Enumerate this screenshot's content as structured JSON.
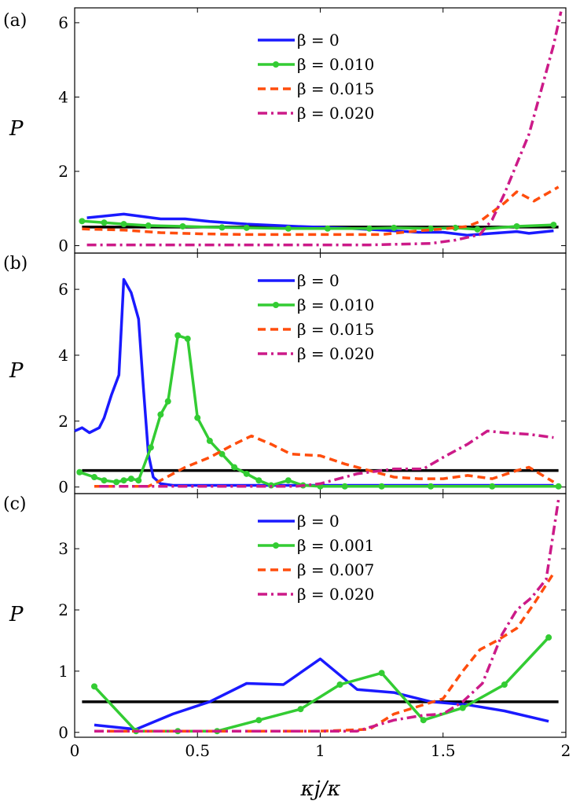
{
  "figure": {
    "xlabel": "κj/κ"
  },
  "chart_data": [
    {
      "type": "line",
      "panel_label": "(a)",
      "ylabel": "P",
      "xlim": [
        0,
        2
      ],
      "ylim": [
        -0.2,
        6.4
      ],
      "xticks": [
        0,
        0.5,
        1,
        1.5,
        2
      ],
      "xtick_labels": [],
      "yticks": [
        0,
        2,
        4,
        6
      ],
      "ytick_labels": [
        "0",
        "2",
        "4",
        "6"
      ],
      "legend_position": "top-center",
      "reference_line": {
        "name": "P = 0.5 reference",
        "y": 0.5,
        "color": "#000000"
      },
      "series": [
        {
          "name": "β = 0",
          "legend": "β = 0",
          "color": "#1a1aff",
          "style": "solid",
          "markers": false,
          "x": [
            0.05,
            0.2,
            0.35,
            0.45,
            0.55,
            0.7,
            0.9,
            1.1,
            1.25,
            1.4,
            1.5,
            1.6,
            1.7,
            1.8,
            1.85,
            1.95
          ],
          "y": [
            0.75,
            0.85,
            0.72,
            0.72,
            0.65,
            0.58,
            0.52,
            0.47,
            0.42,
            0.36,
            0.36,
            0.28,
            0.33,
            0.38,
            0.33,
            0.4
          ]
        },
        {
          "name": "β = 0.010",
          "legend": "β = 0.010",
          "color": "#33cc33",
          "style": "solid",
          "markers": true,
          "x": [
            0.03,
            0.12,
            0.2,
            0.3,
            0.44,
            0.6,
            0.7,
            0.87,
            1.03,
            1.2,
            1.3,
            1.45,
            1.55,
            1.64,
            1.8,
            1.95
          ],
          "y": [
            0.66,
            0.62,
            0.58,
            0.54,
            0.52,
            0.49,
            0.48,
            0.46,
            0.46,
            0.46,
            0.48,
            0.46,
            0.48,
            0.44,
            0.52,
            0.56
          ]
        },
        {
          "name": "β = 0.015",
          "legend": "β = 0.015",
          "color": "#ff4d0d",
          "style": "dashed",
          "markers": false,
          "x": [
            0.03,
            0.2,
            0.35,
            0.5,
            0.7,
            0.9,
            1.1,
            1.25,
            1.4,
            1.5,
            1.6,
            1.65,
            1.75,
            1.8,
            1.87,
            1.97
          ],
          "y": [
            0.45,
            0.42,
            0.35,
            0.32,
            0.3,
            0.3,
            0.3,
            0.3,
            0.4,
            0.45,
            0.52,
            0.65,
            1.15,
            1.45,
            1.2,
            1.58
          ]
        },
        {
          "name": "β = 0.020",
          "legend": "β = 0.020",
          "color": "#cc1a88",
          "style": "dashdot",
          "markers": false,
          "x": [
            0.05,
            0.3,
            0.6,
            0.9,
            1.2,
            1.45,
            1.55,
            1.65,
            1.7,
            1.75,
            1.8,
            1.85,
            1.9,
            1.95,
            1.98
          ],
          "y": [
            0.02,
            0.02,
            0.02,
            0.02,
            0.02,
            0.06,
            0.15,
            0.3,
            0.7,
            1.4,
            2.2,
            3.0,
            4.2,
            5.4,
            6.3
          ]
        }
      ]
    },
    {
      "type": "line",
      "panel_label": "(b)",
      "ylabel": "P",
      "xlim": [
        0,
        2
      ],
      "ylim": [
        -0.2,
        7.1
      ],
      "xticks": [
        0,
        0.5,
        1,
        1.5,
        2
      ],
      "xtick_labels": [],
      "yticks": [
        0,
        2,
        4,
        6
      ],
      "ytick_labels": [
        "0",
        "2",
        "4",
        "6"
      ],
      "legend_position": "top-center",
      "reference_line": {
        "name": "P = 0.5 reference",
        "y": 0.5,
        "color": "#000000"
      },
      "series": [
        {
          "name": "β = 0",
          "legend": "β = 0",
          "color": "#1a1aff",
          "style": "solid",
          "markers": false,
          "x": [
            0.0,
            0.03,
            0.06,
            0.1,
            0.12,
            0.15,
            0.18,
            0.2,
            0.23,
            0.26,
            0.28,
            0.3,
            0.32,
            0.35,
            0.4,
            0.5,
            0.7,
            1.0,
            1.5,
            1.95
          ],
          "y": [
            1.7,
            1.8,
            1.65,
            1.8,
            2.1,
            2.8,
            3.4,
            6.3,
            5.9,
            5.1,
            3.0,
            1.0,
            0.3,
            0.1,
            0.05,
            0.05,
            0.05,
            0.05,
            0.05,
            0.05
          ]
        },
        {
          "name": "β = 0.010",
          "legend": "β = 0.010",
          "color": "#33cc33",
          "style": "solid",
          "markers": true,
          "x": [
            0.02,
            0.08,
            0.12,
            0.17,
            0.2,
            0.23,
            0.26,
            0.31,
            0.35,
            0.38,
            0.42,
            0.46,
            0.5,
            0.55,
            0.6,
            0.65,
            0.7,
            0.75,
            0.8,
            0.87,
            0.93,
            1.0,
            1.1,
            1.25,
            1.45,
            1.7,
            1.97
          ],
          "y": [
            0.45,
            0.3,
            0.2,
            0.15,
            0.2,
            0.25,
            0.2,
            1.2,
            2.2,
            2.6,
            4.6,
            4.5,
            2.1,
            1.4,
            1.0,
            0.6,
            0.4,
            0.2,
            0.05,
            0.2,
            0.05,
            0.02,
            0.02,
            0.02,
            0.02,
            0.02,
            0.02
          ]
        },
        {
          "name": "β = 0.015",
          "legend": "β = 0.015",
          "color": "#ff4d0d",
          "style": "dashed",
          "markers": false,
          "x": [
            0.08,
            0.3,
            0.35,
            0.45,
            0.55,
            0.65,
            0.72,
            0.8,
            0.88,
            1.0,
            1.1,
            1.2,
            1.3,
            1.4,
            1.5,
            1.6,
            1.7,
            1.8,
            1.85,
            1.95
          ],
          "y": [
            0.02,
            0.02,
            0.2,
            0.6,
            0.9,
            1.3,
            1.55,
            1.3,
            1.0,
            0.95,
            0.7,
            0.5,
            0.3,
            0.25,
            0.25,
            0.35,
            0.25,
            0.5,
            0.6,
            0.15
          ]
        },
        {
          "name": "β = 0.020",
          "legend": "β = 0.020",
          "color": "#cc1a88",
          "style": "dashdot",
          "markers": false,
          "x": [
            0.1,
            0.5,
            0.9,
            1.0,
            1.15,
            1.3,
            1.42,
            1.5,
            1.6,
            1.68,
            1.75,
            1.85,
            1.95
          ],
          "y": [
            0.02,
            0.02,
            0.02,
            0.1,
            0.4,
            0.55,
            0.55,
            0.9,
            1.3,
            1.7,
            1.65,
            1.6,
            1.5
          ]
        }
      ]
    },
    {
      "type": "line",
      "panel_label": "(c)",
      "ylabel": "P",
      "xlim": [
        0,
        2
      ],
      "ylim": [
        -0.08,
        3.9
      ],
      "xticks": [
        0,
        0.5,
        1,
        1.5,
        2
      ],
      "xtick_labels": [
        "0",
        "0.5",
        "1",
        "1.5",
        "2"
      ],
      "yticks": [
        0,
        1,
        2,
        3
      ],
      "ytick_labels": [
        "0",
        "1",
        "2",
        "3"
      ],
      "legend_position": "top-center",
      "reference_line": {
        "name": "P = 0.5 reference",
        "y": 0.5,
        "color": "#000000"
      },
      "series": [
        {
          "name": "β = 0",
          "legend": "β = 0",
          "color": "#1a1aff",
          "style": "solid",
          "markers": false,
          "x": [
            0.08,
            0.25,
            0.4,
            0.55,
            0.7,
            0.85,
            1.0,
            1.15,
            1.3,
            1.45,
            1.6,
            1.75,
            1.93
          ],
          "y": [
            0.12,
            0.05,
            0.3,
            0.5,
            0.8,
            0.78,
            1.2,
            0.7,
            0.65,
            0.5,
            0.45,
            0.35,
            0.18
          ]
        },
        {
          "name": "β = 0.001",
          "legend": "β = 0.001",
          "color": "#33cc33",
          "style": "solid",
          "markers": true,
          "x": [
            0.08,
            0.25,
            0.42,
            0.58,
            0.75,
            0.92,
            1.08,
            1.25,
            1.42,
            1.58,
            1.75,
            1.93
          ],
          "y": [
            0.75,
            0.02,
            0.02,
            0.02,
            0.2,
            0.38,
            0.78,
            0.97,
            0.2,
            0.4,
            0.78,
            1.55
          ]
        },
        {
          "name": "β = 0.007",
          "legend": "β = 0.007",
          "color": "#ff4d0d",
          "style": "dashed",
          "markers": false,
          "x": [
            0.08,
            0.5,
            1.0,
            1.2,
            1.3,
            1.42,
            1.5,
            1.58,
            1.65,
            1.72,
            1.8,
            1.87,
            1.95
          ],
          "y": [
            0.02,
            0.02,
            0.02,
            0.05,
            0.3,
            0.45,
            0.55,
            1.0,
            1.35,
            1.5,
            1.7,
            2.1,
            2.6
          ]
        },
        {
          "name": "β = 0.020",
          "legend": "β = 0.020",
          "color": "#cc1a88",
          "style": "dashdot",
          "markers": false,
          "x": [
            0.08,
            0.5,
            1.0,
            1.15,
            1.3,
            1.42,
            1.5,
            1.58,
            1.66,
            1.74,
            1.8,
            1.86,
            1.92,
            1.97
          ],
          "y": [
            0.02,
            0.02,
            0.02,
            0.02,
            0.2,
            0.28,
            0.3,
            0.5,
            0.8,
            1.6,
            2.0,
            2.2,
            2.5,
            3.8
          ]
        }
      ]
    }
  ]
}
